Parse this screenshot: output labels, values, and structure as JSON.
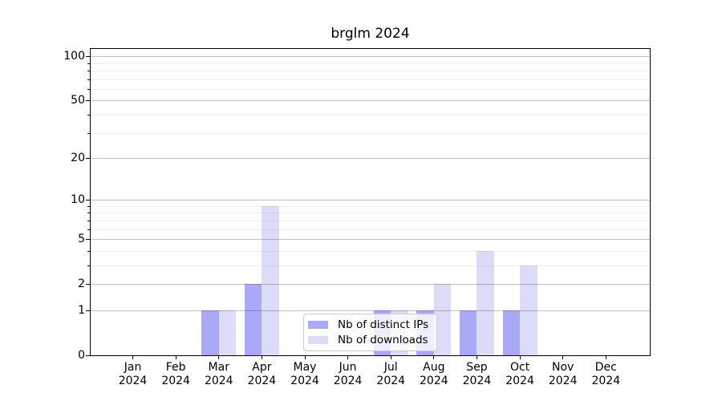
{
  "title": "brglm 2024",
  "colors": {
    "ips_bar": "#a9a9f7",
    "downloads_bar": "#dcdcf8",
    "grid_major": "rgba(40,40,40,0.28)",
    "grid_minor": "rgba(40,40,40,0.08)",
    "axis": "#000000",
    "legend_border": "#cbcbcb",
    "text": "#000000"
  },
  "legend": {
    "items": [
      {
        "label": "Nb of distinct IPs",
        "color": "#a9a9f7"
      },
      {
        "label": "Nb of downloads",
        "color": "#dcdcf8"
      }
    ]
  },
  "chart_data": {
    "type": "bar",
    "title": "brglm 2024",
    "categories": [
      "Jan 2024",
      "Feb 2024",
      "Mar 2024",
      "Apr 2024",
      "May 2024",
      "Jun 2024",
      "Jul 2024",
      "Aug 2024",
      "Sep 2024",
      "Oct 2024",
      "Nov 2024",
      "Dec 2024"
    ],
    "month_labels": [
      "Jan",
      "Feb",
      "Mar",
      "Apr",
      "May",
      "Jun",
      "Jul",
      "Aug",
      "Sep",
      "Oct",
      "Nov",
      "Dec"
    ],
    "year_label": "2024",
    "series": [
      {
        "name": "Nb of distinct IPs",
        "values": [
          0,
          0,
          1,
          2,
          0,
          0,
          1,
          1,
          1,
          1,
          0,
          0
        ]
      },
      {
        "name": "Nb of downloads",
        "values": [
          0,
          0,
          1,
          9,
          0,
          0,
          1,
          2,
          4,
          3,
          0,
          0
        ]
      }
    ],
    "xlabel": "",
    "ylabel": "",
    "y_scale": "log10(1+y)",
    "y_major_ticks": [
      100,
      50,
      20,
      10,
      5,
      2,
      1,
      0
    ],
    "y_minor_ticks": [
      3,
      4,
      6,
      7,
      8,
      9,
      30,
      40,
      60,
      70,
      80,
      90
    ],
    "ylim": [
      0,
      113
    ],
    "grid": true,
    "legend_position": "lower-center"
  }
}
